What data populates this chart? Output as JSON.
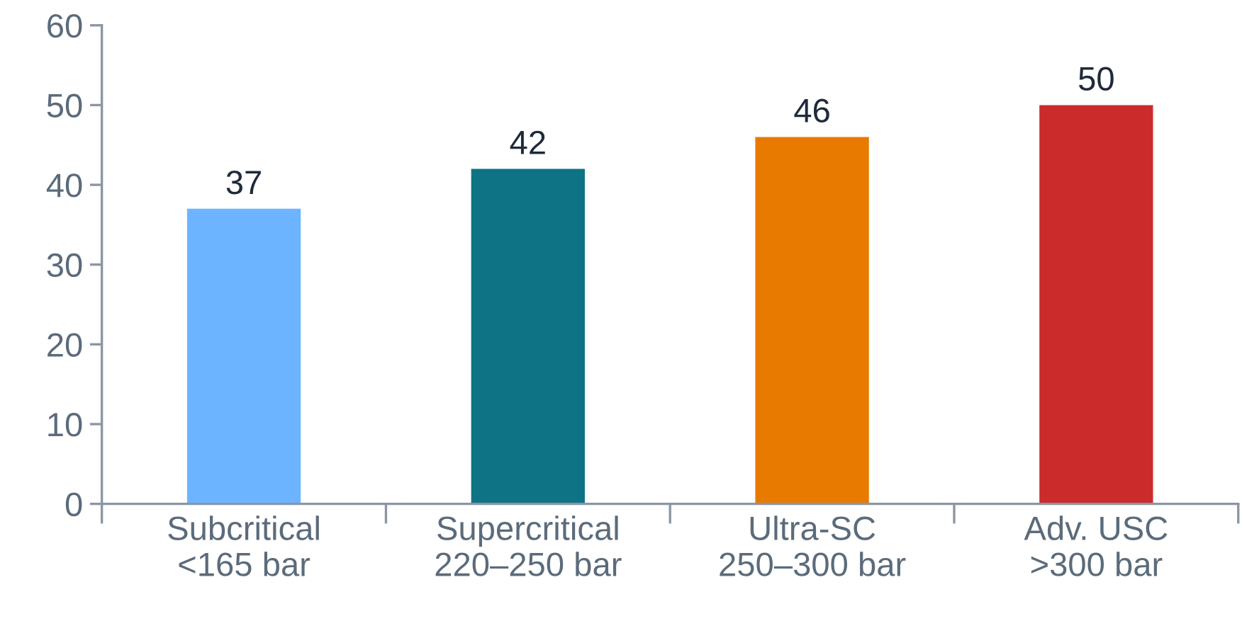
{
  "chart_data": {
    "type": "bar",
    "categories": [
      "Subcritical\n<165 bar",
      "Supercritical\n220–250 bar",
      "Ultra-SC\n250–300 bar",
      "Adv. USC\n>300 bar"
    ],
    "values": [
      37,
      42,
      46,
      50
    ],
    "colors": [
      "#6cb4ff",
      "#0e7385",
      "#e87a00",
      "#cc2b2b"
    ],
    "ylim": [
      0,
      60
    ],
    "yticks": [
      0,
      10,
      20,
      30,
      40,
      50,
      60
    ],
    "data_labels": true,
    "grid": false,
    "legend": false
  }
}
